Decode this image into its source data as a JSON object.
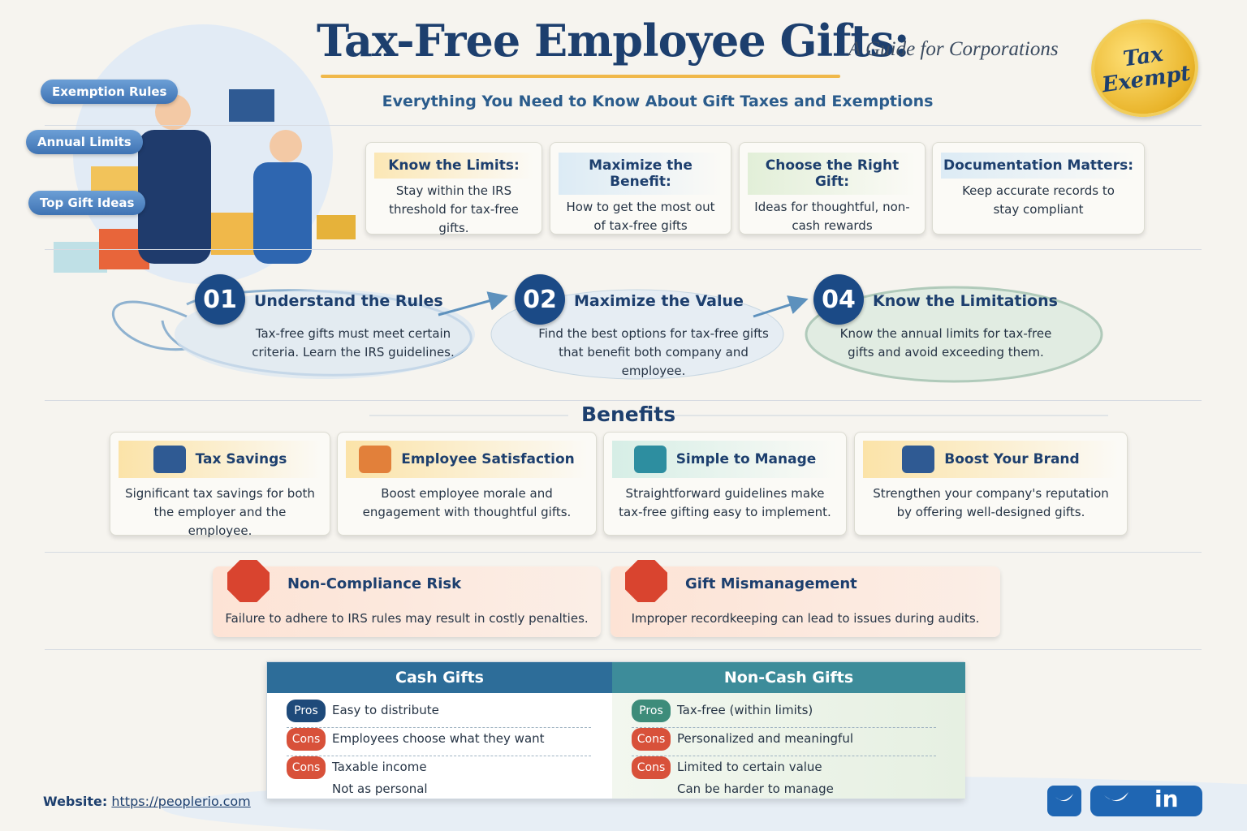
{
  "header": {
    "title": "Tax-Free Employee Gifts:",
    "subtitle": "A Guide for Corporations",
    "tagline": "Everything You Need to Know About Gift Taxes and Exemptions",
    "badge": [
      "Tax",
      "Exempt"
    ]
  },
  "side_tags": [
    "Exemption Rules",
    "Annual Limits",
    "Top Gift Ideas"
  ],
  "tips": [
    {
      "title": "Know the Limits:",
      "text": "Stay within the IRS threshold for tax-free gifts."
    },
    {
      "title": "Maximize the Benefit:",
      "text": "How to get the most out of tax-free gifts"
    },
    {
      "title": "Choose the Right Gift:",
      "text": "Ideas for thoughtful, non-cash rewards"
    },
    {
      "title": "Documentation Matters:",
      "text": "Keep accurate records to stay compliant"
    }
  ],
  "steps": [
    {
      "number": "01",
      "title": "Understand the Rules",
      "text": "Tax-free gifts must meet certain criteria. Learn the IRS guidelines."
    },
    {
      "number": "02",
      "title": "Maximize the Value",
      "text": "Find the best options for tax-free gifts that benefit both company and employee."
    },
    {
      "number": "04",
      "title": "Know the Limitations",
      "text": "Know the annual limits for tax-free gifts and avoid exceeding them."
    }
  ],
  "benefits": {
    "heading": "Benefits",
    "items": [
      {
        "title": "Tax Savings",
        "text": "Significant tax savings for both the employer and the employee."
      },
      {
        "title": "Employee Satisfaction",
        "text": "Boost employee morale and engagement with thoughtful gifts."
      },
      {
        "title": "Simple to Manage",
        "text": "Straightforward guidelines make tax-free gifting easy to implement."
      },
      {
        "title": "Boost Your Brand",
        "text": "Strengthen your company's reputation by offering well-designed gifts."
      }
    ]
  },
  "risks": [
    {
      "title": "Non-Compliance Risk",
      "text": "Failure to adhere to IRS rules may result in costly penalties."
    },
    {
      "title": "Gift Mismanagement",
      "text": "Improper recordkeeping can lead to issues during audits."
    }
  ],
  "comparison": [
    {
      "title": "Cash Gifts",
      "rows": [
        {
          "tag": "Pros",
          "lines": [
            "Easy to distribute"
          ]
        },
        {
          "tag": "Cons",
          "lines": [
            "Employees choose what they want"
          ]
        },
        {
          "tag": "Cons",
          "lines": [
            "Taxable income",
            "Not as personal"
          ]
        }
      ]
    },
    {
      "title": "Non-Cash Gifts",
      "rows": [
        {
          "tag": "Pros",
          "lines": [
            "Tax-free (within limits)"
          ]
        },
        {
          "tag": "Cons",
          "lines": [
            "Personalized and meaningful"
          ]
        },
        {
          "tag": "Cons",
          "lines": [
            "Limited to certain value",
            "Can be harder to manage"
          ]
        }
      ]
    }
  ],
  "footer": {
    "website_label": "Website:",
    "website_url": "https://peoplerio.com",
    "linkedin": "in"
  }
}
